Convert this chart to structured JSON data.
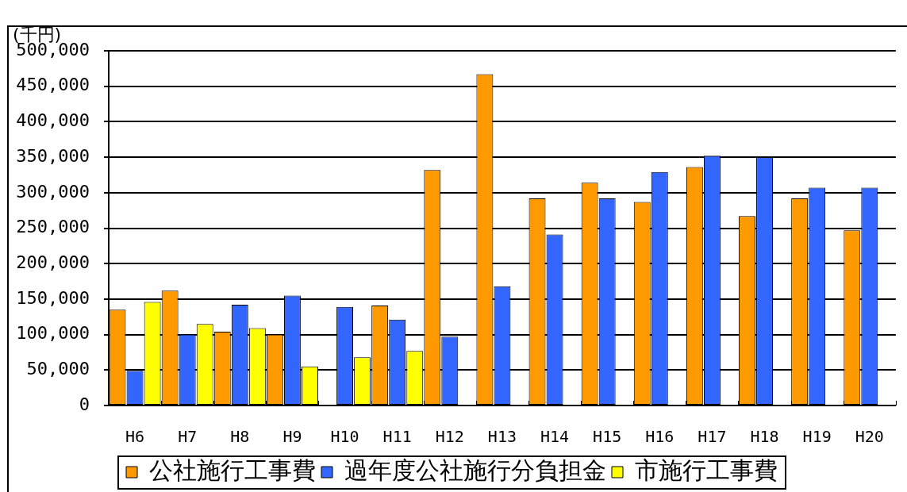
{
  "chart_data": {
    "type": "bar",
    "ylabel": "(千円)",
    "categories": [
      "H6",
      "H7",
      "H8",
      "H9",
      "H10",
      "H11",
      "H12",
      "H13",
      "H14",
      "H15",
      "H16",
      "H17",
      "H18",
      "H19",
      "H20"
    ],
    "series": [
      {
        "name": "公社施行工事費",
        "color": "#ff9900",
        "values": [
          135000,
          162000,
          104000,
          100000,
          null,
          141000,
          332000,
          467000,
          292000,
          314000,
          287000,
          336000,
          267000,
          292000,
          247000
        ]
      },
      {
        "name": "過年度公社施行分負担金",
        "color": "#3366ff",
        "values": [
          49000,
          100000,
          142000,
          155000,
          139000,
          121000,
          97000,
          168000,
          241000,
          292000,
          329000,
          352000,
          350000,
          307000,
          307000
        ]
      },
      {
        "name": "市施行工事費",
        "color": "#ffff00",
        "values": [
          146000,
          115000,
          109000,
          55000,
          68000,
          77000,
          null,
          null,
          null,
          null,
          null,
          null,
          null,
          null,
          null
        ]
      }
    ],
    "ylim": [
      0,
      500000
    ],
    "yticks": [
      0,
      {
        "value": 50000,
        "label": "50,000"
      },
      {
        "value": 100000,
        "label": "100,000"
      },
      {
        "value": 150000,
        "label": "150,000"
      },
      {
        "value": 200000,
        "label": "200,000"
      },
      {
        "value": 250000,
        "label": "250,000"
      },
      {
        "value": 300000,
        "label": "300,000"
      },
      {
        "value": 350000,
        "label": "350,000"
      },
      {
        "value": 400000,
        "label": "400,000"
      },
      {
        "value": 450000,
        "label": "450,000"
      },
      {
        "value": 500000,
        "label": "500,000"
      }
    ],
    "grid": "y",
    "legend": "bottom"
  }
}
